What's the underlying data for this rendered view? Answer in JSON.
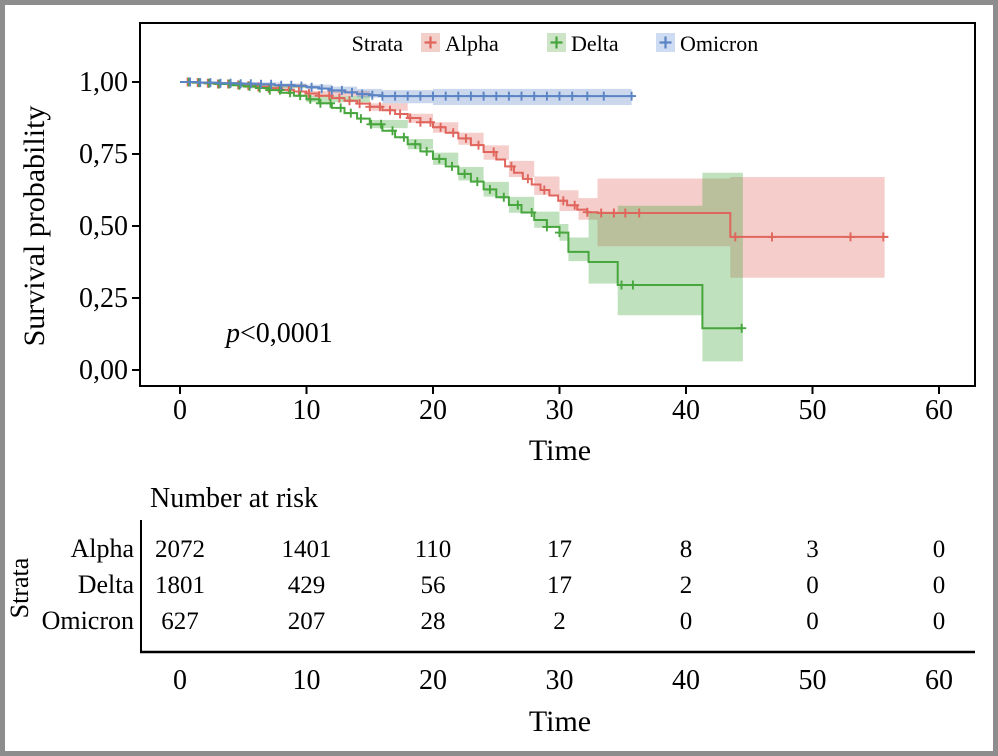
{
  "chart_data": {
    "type": "line",
    "subtype": "kaplan-meier-step",
    "x_label": "Time",
    "y_label": "Survival probability",
    "xlim": [
      0,
      60
    ],
    "ylim": [
      0,
      1
    ],
    "x_ticks": [
      0,
      10,
      20,
      30,
      40,
      50,
      60
    ],
    "y_ticks": [
      {
        "value": 1.0,
        "label": "1,00"
      },
      {
        "value": 0.75,
        "label": "0,75"
      },
      {
        "value": 0.5,
        "label": "0,50"
      },
      {
        "value": 0.25,
        "label": "0,25"
      },
      {
        "value": 0.0,
        "label": "0,00"
      }
    ],
    "grid": false,
    "legend_position": "top",
    "legend_title": "Strata",
    "p_value_italic": "p",
    "p_value_rest": "<0,0001",
    "series": [
      {
        "name": "Alpha",
        "line_color": "#e0655c",
        "band_color": "rgba(224,101,92,0.32)",
        "key_fill": "#f3cfca",
        "steps": [
          [
            0,
            1
          ],
          [
            1,
            0.998
          ],
          [
            2,
            0.996
          ],
          [
            3,
            0.993
          ],
          [
            4,
            0.99
          ],
          [
            5,
            0.987
          ],
          [
            6,
            0.983
          ],
          [
            7,
            0.978
          ],
          [
            8,
            0.973
          ],
          [
            9,
            0.967
          ],
          [
            10,
            0.96
          ],
          [
            11,
            0.952
          ],
          [
            12,
            0.944
          ],
          [
            13,
            0.935
          ],
          [
            14,
            0.925
          ],
          [
            15,
            0.914
          ],
          [
            16,
            0.902
          ],
          [
            17,
            0.889
          ],
          [
            18,
            0.875
          ],
          [
            19,
            0.86
          ],
          [
            20,
            0.843
          ],
          [
            21,
            0.824
          ],
          [
            22,
            0.804
          ],
          [
            23,
            0.781
          ],
          [
            24,
            0.757
          ],
          [
            25,
            0.731
          ],
          [
            25.7,
            0.707
          ],
          [
            26.4,
            0.685
          ],
          [
            27.1,
            0.664
          ],
          [
            27.8,
            0.644
          ],
          [
            28.5,
            0.625
          ],
          [
            29.2,
            0.606
          ],
          [
            29.9,
            0.588
          ],
          [
            30.6,
            0.572
          ],
          [
            31.4,
            0.557
          ],
          [
            32.2,
            0.548
          ],
          [
            33,
            0.545
          ],
          [
            43.5,
            0.462
          ],
          [
            56,
            0.462
          ]
        ],
        "censor_times": [
          0.6,
          1.4,
          2.2,
          3,
          3.8,
          4.6,
          5.4,
          6.2,
          7,
          7.8,
          8.6,
          9.4,
          10.2,
          11,
          11.8,
          12.6,
          13.4,
          14.2,
          15,
          15.8,
          16.6,
          17.4,
          18.2,
          19,
          19.8,
          20.6,
          21.6,
          22.6,
          23.6,
          24.8,
          26.2,
          27.5,
          28.8,
          30.3,
          31.2,
          32.2,
          33.3,
          34.3,
          35.2,
          36.3,
          43.9,
          46.8,
          53,
          55.6
        ],
        "band": [
          [
            0,
            0.997,
            1
          ],
          [
            5,
            0.98,
            0.993
          ],
          [
            10,
            0.95,
            0.969
          ],
          [
            15,
            0.9,
            0.926
          ],
          [
            18,
            0.858,
            0.89
          ],
          [
            20,
            0.824,
            0.86
          ],
          [
            22,
            0.782,
            0.824
          ],
          [
            24,
            0.73,
            0.78
          ],
          [
            26,
            0.67,
            0.726
          ],
          [
            28,
            0.608,
            0.672
          ],
          [
            30,
            0.552,
            0.624
          ],
          [
            31.5,
            0.522,
            0.597
          ],
          [
            33,
            0.43,
            0.665
          ],
          [
            43.5,
            0.32,
            0.67
          ],
          [
            55.7,
            0.32,
            0.67
          ]
        ]
      },
      {
        "name": "Delta",
        "line_color": "#47a63d",
        "band_color": "rgba(71,166,61,0.34)",
        "key_fill": "#cde4c6",
        "steps": [
          [
            0,
            1
          ],
          [
            1,
            0.998
          ],
          [
            2,
            0.996
          ],
          [
            3,
            0.993
          ],
          [
            4,
            0.989
          ],
          [
            5,
            0.985
          ],
          [
            6,
            0.979
          ],
          [
            7,
            0.972
          ],
          [
            8,
            0.963
          ],
          [
            9,
            0.952
          ],
          [
            10,
            0.94
          ],
          [
            11,
            0.926
          ],
          [
            12,
            0.91
          ],
          [
            13,
            0.892
          ],
          [
            14,
            0.873
          ],
          [
            15,
            0.853
          ],
          [
            16,
            0.831
          ],
          [
            17,
            0.808
          ],
          [
            18,
            0.784
          ],
          [
            19,
            0.759
          ],
          [
            20,
            0.733
          ],
          [
            21,
            0.707
          ],
          [
            22,
            0.681
          ],
          [
            23,
            0.654
          ],
          [
            24,
            0.627
          ],
          [
            25,
            0.6
          ],
          [
            26,
            0.573
          ],
          [
            27,
            0.547
          ],
          [
            28,
            0.521
          ],
          [
            29,
            0.497
          ],
          [
            30,
            0.477
          ],
          [
            30.7,
            0.41
          ],
          [
            32.3,
            0.375
          ],
          [
            34.6,
            0.295
          ],
          [
            41.3,
            0.145
          ],
          [
            44.5,
            0.145
          ]
        ],
        "censor_times": [
          0.7,
          1.5,
          2.3,
          3.1,
          3.9,
          4.7,
          5.5,
          6.3,
          7.1,
          7.9,
          8.7,
          9.5,
          10.3,
          11.1,
          11.9,
          12.7,
          13.5,
          14.3,
          15.1,
          15.9,
          16.8,
          17.7,
          18.6,
          19.5,
          20.5,
          21.5,
          22.5,
          23.5,
          24.5,
          25.6,
          26.7,
          27.8,
          29,
          30,
          34.9,
          35.8,
          44.4
        ],
        "band": [
          [
            0,
            0.997,
            1
          ],
          [
            5,
            0.978,
            0.991
          ],
          [
            10,
            0.93,
            0.951
          ],
          [
            15,
            0.84,
            0.868
          ],
          [
            18,
            0.766,
            0.802
          ],
          [
            20,
            0.712,
            0.755
          ],
          [
            22,
            0.658,
            0.705
          ],
          [
            24,
            0.602,
            0.653
          ],
          [
            26,
            0.546,
            0.601
          ],
          [
            28,
            0.494,
            0.55
          ],
          [
            30,
            0.449,
            0.507
          ],
          [
            30.7,
            0.378,
            0.46
          ],
          [
            32.3,
            0.3,
            0.55
          ],
          [
            34.6,
            0.19,
            0.57
          ],
          [
            41.3,
            0.03,
            0.685
          ],
          [
            44.5,
            0.03,
            0.685
          ]
        ]
      },
      {
        "name": "Omicron",
        "line_color": "#5b84c4",
        "band_color": "rgba(91,132,196,0.32)",
        "key_fill": "#cddcf2",
        "steps": [
          [
            0,
            1
          ],
          [
            1.5,
            0.998
          ],
          [
            3,
            0.996
          ],
          [
            4.5,
            0.994
          ],
          [
            6,
            0.992
          ],
          [
            7.5,
            0.989
          ],
          [
            9,
            0.986
          ],
          [
            10,
            0.982
          ],
          [
            11,
            0.977
          ],
          [
            12,
            0.971
          ],
          [
            13,
            0.964
          ],
          [
            14,
            0.958
          ],
          [
            15,
            0.954
          ],
          [
            16,
            0.951
          ],
          [
            35.9,
            0.951
          ]
        ],
        "censor_times": [
          0.8,
          1.6,
          2.4,
          3.2,
          4,
          4.8,
          5.6,
          6.4,
          7.2,
          8,
          8.8,
          9.6,
          10.4,
          11.2,
          12,
          12.8,
          13.6,
          14.4,
          15.2,
          16,
          17,
          18,
          19,
          20,
          21,
          22,
          23,
          24,
          25,
          26,
          27,
          28,
          29,
          30,
          31,
          32.2,
          33.5,
          35.7
        ],
        "band": [
          [
            0,
            0.999,
            1
          ],
          [
            4,
            0.995,
            0.999
          ],
          [
            8,
            0.984,
            0.995
          ],
          [
            10,
            0.975,
            0.991
          ],
          [
            12,
            0.962,
            0.984
          ],
          [
            14,
            0.946,
            0.976
          ],
          [
            16,
            0.926,
            0.972
          ],
          [
            20,
            0.92,
            0.976
          ],
          [
            35.7,
            0.914,
            0.982
          ]
        ]
      }
    ]
  },
  "risk_table": {
    "title": "Number at risk",
    "strata_label": "Strata",
    "x_label": "Time",
    "x_ticks": [
      0,
      10,
      20,
      30,
      40,
      50,
      60
    ],
    "rows": [
      {
        "name": "Alpha",
        "color": "#e02b20",
        "values": [
          2072,
          1401,
          110,
          17,
          8,
          3,
          0
        ]
      },
      {
        "name": "Delta",
        "color": "#2ea12e",
        "values": [
          1801,
          429,
          56,
          17,
          2,
          0,
          0
        ]
      },
      {
        "name": "Omicron",
        "color": "#2f49c0",
        "values": [
          627,
          207,
          28,
          2,
          0,
          0,
          0
        ]
      }
    ]
  }
}
